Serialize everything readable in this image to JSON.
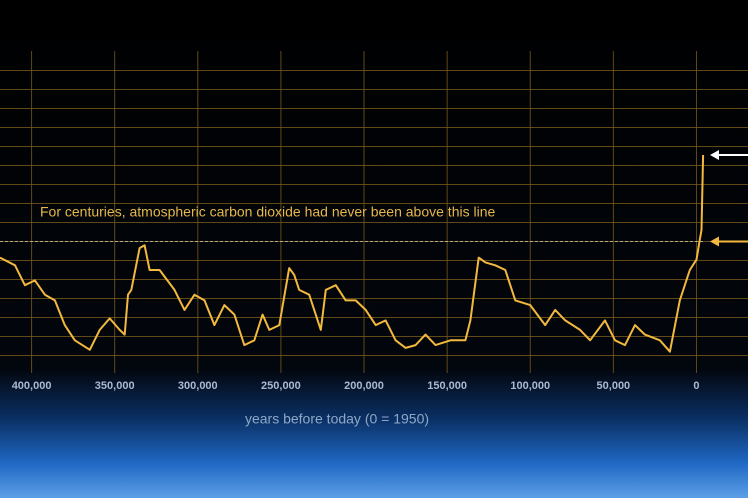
{
  "chart_data": {
    "type": "line",
    "annotation": "For centuries, atmospheric carbon dioxide had never been above this line",
    "x_label": "years before today (0 = 1950)",
    "threshold": 300,
    "xlim": [
      419000,
      -31000
    ],
    "xticks": [
      {
        "value": 400000,
        "label": "400,000"
      },
      {
        "value": 350000,
        "label": "350,000"
      },
      {
        "value": 300000,
        "label": "300,000"
      },
      {
        "value": 250000,
        "label": "250,000"
      },
      {
        "value": 200000,
        "label": "200,000"
      },
      {
        "value": 150000,
        "label": "150,000"
      },
      {
        "value": 100000,
        "label": "100,000"
      },
      {
        "value": 50000,
        "label": "50,000"
      },
      0
    ],
    "ylim": [
      170,
      490
    ],
    "yticks": [
      180,
      200,
      220,
      240,
      260,
      280,
      300,
      320,
      340,
      360,
      380,
      400,
      420,
      440,
      460,
      480
    ],
    "grid": true,
    "x": [
      419000,
      410000,
      404000,
      398000,
      392000,
      386000,
      380000,
      374000,
      365000,
      359000,
      353000,
      347000,
      344000,
      342000,
      340000,
      335000,
      332000,
      329000,
      323000,
      314000,
      308000,
      302000,
      296000,
      290000,
      284000,
      278000,
      272000,
      266000,
      261000,
      257000,
      251000,
      245000,
      242000,
      239000,
      233000,
      226000,
      223000,
      217000,
      211000,
      205000,
      199000,
      193000,
      187000,
      181000,
      175000,
      169000,
      163000,
      157000,
      148000,
      139000,
      136000,
      131000,
      127000,
      121000,
      115000,
      109000,
      100000,
      91000,
      85000,
      79000,
      70000,
      64000,
      55000,
      49000,
      43000,
      37000,
      31000,
      22000,
      16000,
      10000,
      4000,
      0,
      -2000,
      -3000,
      -4000
    ],
    "series": [
      {
        "name": "CO2",
        "color": "#f2b93e",
        "values": [
          283,
          275,
          254,
          259,
          244,
          238,
          212,
          196,
          186,
          207,
          219,
          207,
          202,
          244,
          249,
          293,
          296,
          270,
          270,
          249,
          228,
          244,
          238,
          212,
          233,
          223,
          191,
          196,
          223,
          207,
          212,
          272,
          265,
          249,
          244,
          207,
          249,
          254,
          238,
          238,
          228,
          212,
          217,
          196,
          188,
          191,
          202,
          191,
          196,
          196,
          217,
          283,
          278,
          275,
          270,
          238,
          233,
          212,
          228,
          217,
          207,
          196,
          217,
          196,
          191,
          212,
          202,
          196,
          184,
          238,
          270,
          281,
          302,
          312,
          391
        ]
      }
    ]
  }
}
